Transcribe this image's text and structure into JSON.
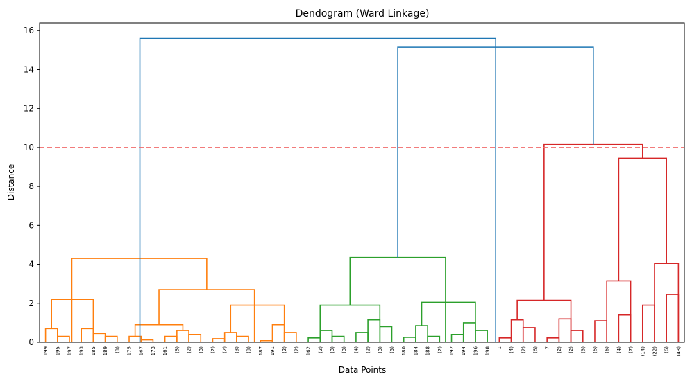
{
  "chart_data": {
    "type": "dendrogram",
    "title": "Dendogram (Ward Linkage)",
    "xlabel": "Data Points",
    "ylabel": "Distance",
    "ylim": [
      0,
      16.4
    ],
    "yticks": [
      0,
      2,
      4,
      6,
      8,
      10,
      12,
      14,
      16
    ],
    "grid": false,
    "threshold": {
      "y": 10,
      "color": "#f06a6a",
      "style": "dashed"
    },
    "leaf_labels": [
      "199",
      "195",
      "197",
      "193",
      "185",
      "189",
      "(3)",
      "175",
      "167",
      "173",
      "161",
      "(5)",
      "(2)",
      "(3)",
      "(2)",
      "(2)",
      "(3)",
      "(3)",
      "187",
      "191",
      "(2)",
      "(2)",
      "162",
      "(2)",
      "(3)",
      "(3)",
      "(4)",
      "(2)",
      "(3)",
      "(5)",
      "180",
      "184",
      "188",
      "(2)",
      "192",
      "194",
      "196",
      "198",
      "1",
      "(4)",
      "(2)",
      "(6)",
      "7",
      "(2)",
      "(2)",
      "(3)",
      "(6)",
      "(6)",
      "(4)",
      "(7)",
      "(14)",
      "(22)",
      "(6)",
      "(43)"
    ],
    "cluster_colors": {
      "orange": "#ff7f0e",
      "green": "#2ca02c",
      "red": "#d62728",
      "link": "#1f77b4"
    },
    "merges": [
      {
        "l": 0,
        "r": 1,
        "h": 0.7,
        "c": "orange"
      },
      {
        "l": 1,
        "r": 2,
        "h": 0.3,
        "c": "orange"
      },
      {
        "l": 3,
        "r": 4,
        "h": 0.7,
        "c": "orange"
      },
      {
        "l": 4,
        "r": 5,
        "h": 0.45,
        "c": "orange"
      },
      {
        "l": 5,
        "r": 6,
        "h": 0.3,
        "c": "orange"
      },
      {
        "l": 0.5,
        "r": 4,
        "h": 2.2,
        "c": "orange"
      },
      {
        "l": 7,
        "r": 8,
        "h": 0.3,
        "c": "orange"
      },
      {
        "l": 8,
        "r": 9,
        "h": 0.12,
        "c": "orange"
      },
      {
        "l": 10,
        "r": 11,
        "h": 0.3,
        "c": "orange"
      },
      {
        "l": 11,
        "r": 12,
        "h": 0.6,
        "c": "orange"
      },
      {
        "l": 12,
        "r": 13,
        "h": 0.4,
        "c": "orange"
      },
      {
        "l": 7.5,
        "r": 11.5,
        "h": 0.9,
        "c": "orange"
      },
      {
        "l": 14,
        "r": 15,
        "h": 0.18,
        "c": "orange"
      },
      {
        "l": 15,
        "r": 16,
        "h": 0.5,
        "c": "orange"
      },
      {
        "l": 16,
        "r": 17,
        "h": 0.3,
        "c": "orange"
      },
      {
        "l": 18,
        "r": 19,
        "h": 0.08,
        "c": "orange"
      },
      {
        "l": 19,
        "r": 20,
        "h": 0.9,
        "c": "orange"
      },
      {
        "l": 20,
        "r": 21,
        "h": 0.5,
        "c": "orange"
      },
      {
        "l": 15.5,
        "r": 20,
        "h": 1.9,
        "c": "orange"
      },
      {
        "l": 9.5,
        "r": 17.5,
        "h": 2.7,
        "c": "orange"
      },
      {
        "l": 2.2,
        "r": 13.5,
        "h": 4.3,
        "c": "orange"
      },
      {
        "l": 22,
        "r": 23,
        "h": 0.22,
        "c": "green"
      },
      {
        "l": 23,
        "r": 24,
        "h": 0.6,
        "c": "green"
      },
      {
        "l": 24,
        "r": 25,
        "h": 0.3,
        "c": "green"
      },
      {
        "l": 26,
        "r": 27,
        "h": 0.5,
        "c": "green"
      },
      {
        "l": 27,
        "r": 28,
        "h": 1.15,
        "c": "green"
      },
      {
        "l": 28,
        "r": 29,
        "h": 0.8,
        "c": "green"
      },
      {
        "l": 23,
        "r": 28,
        "h": 1.9,
        "c": "green"
      },
      {
        "l": 30,
        "r": 31,
        "h": 0.25,
        "c": "green"
      },
      {
        "l": 31,
        "r": 32,
        "h": 0.85,
        "c": "green"
      },
      {
        "l": 32,
        "r": 33,
        "h": 0.3,
        "c": "green"
      },
      {
        "l": 34,
        "r": 35,
        "h": 0.4,
        "c": "green"
      },
      {
        "l": 35,
        "r": 36,
        "h": 1.0,
        "c": "green"
      },
      {
        "l": 36,
        "r": 37,
        "h": 0.6,
        "c": "green"
      },
      {
        "l": 31.5,
        "r": 36,
        "h": 2.05,
        "c": "green"
      },
      {
        "l": 25.5,
        "r": 33.5,
        "h": 4.35,
        "c": "green"
      },
      {
        "l": 38,
        "r": 39,
        "h": 0.22,
        "c": "red"
      },
      {
        "l": 39,
        "r": 40,
        "h": 1.15,
        "c": "red"
      },
      {
        "l": 40,
        "r": 41,
        "h": 0.75,
        "c": "red"
      },
      {
        "l": 42,
        "r": 43,
        "h": 0.22,
        "c": "red"
      },
      {
        "l": 43,
        "r": 44,
        "h": 1.2,
        "c": "red"
      },
      {
        "l": 44,
        "r": 45,
        "h": 0.6,
        "c": "red"
      },
      {
        "l": 39.5,
        "r": 44,
        "h": 2.15,
        "c": "red"
      },
      {
        "l": 46,
        "r": 47,
        "h": 1.1,
        "c": "red"
      },
      {
        "l": 48,
        "r": 49,
        "h": 1.4,
        "c": "red"
      },
      {
        "l": 47,
        "r": 49,
        "h": 3.15,
        "c": "red"
      },
      {
        "l": 50,
        "r": 51,
        "h": 1.9,
        "c": "red"
      },
      {
        "l": 52,
        "r": 53,
        "h": 2.45,
        "c": "red"
      },
      {
        "l": 51,
        "r": 53,
        "h": 4.05,
        "c": "red"
      },
      {
        "l": 48,
        "r": 52,
        "h": 9.45,
        "c": "red"
      },
      {
        "l": 41.75,
        "r": 50,
        "h": 10.15,
        "c": "red"
      },
      {
        "l": 29.5,
        "r": 45.875,
        "h": 15.15,
        "c": "link"
      },
      {
        "l": 7.9,
        "r": 37.7,
        "h": 15.6,
        "c": "link"
      }
    ]
  }
}
